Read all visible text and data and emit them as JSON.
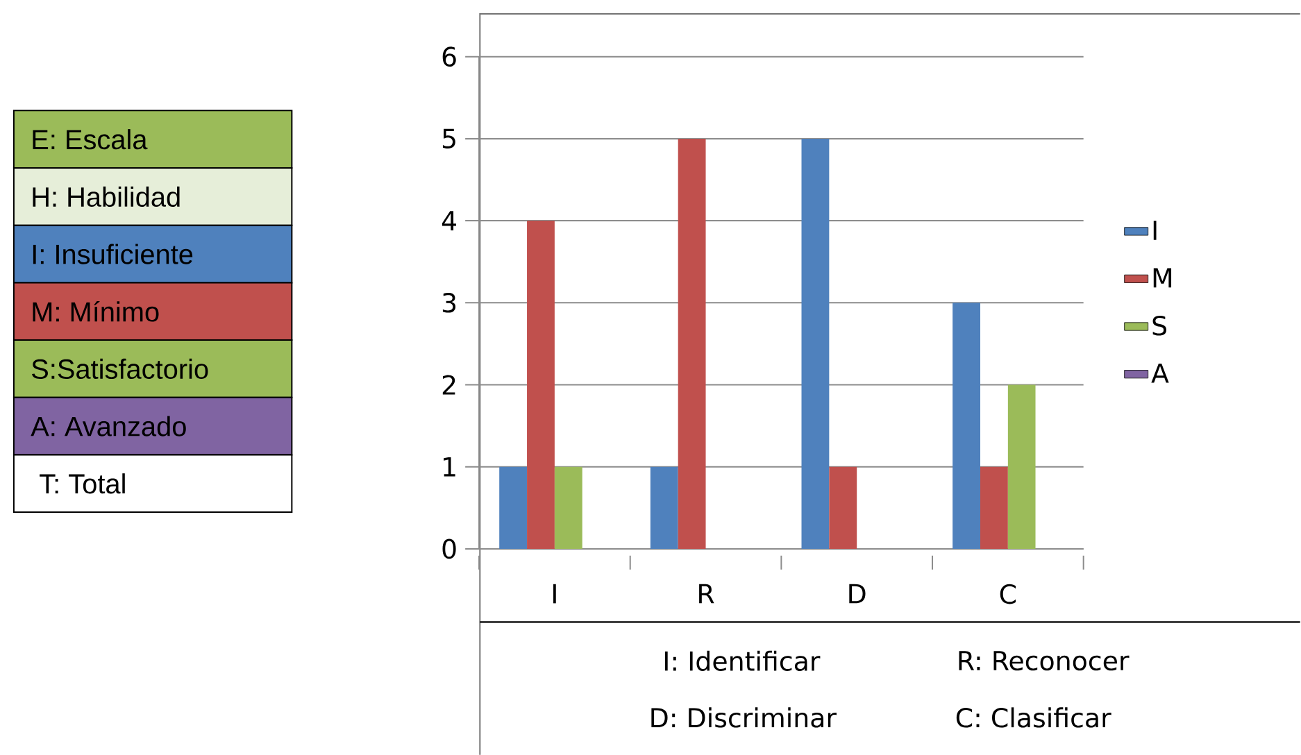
{
  "chart_data": {
    "type": "bar",
    "categories": [
      "I",
      "R",
      "D",
      "C"
    ],
    "series": [
      {
        "name": "I",
        "color": "#4f81bd",
        "values": [
          1,
          1,
          5,
          3
        ]
      },
      {
        "name": "M",
        "color": "#c0504d",
        "values": [
          4,
          5,
          1,
          1
        ]
      },
      {
        "name": "S",
        "color": "#9bbb59",
        "values": [
          1,
          0,
          0,
          2
        ]
      },
      {
        "name": "A",
        "color": "#8064a2",
        "values": [
          0,
          0,
          0,
          0
        ]
      }
    ],
    "ylim": [
      0,
      6
    ],
    "yticks": [
      0,
      1,
      2,
      3,
      4,
      5,
      6
    ],
    "grid": "y",
    "legend": "right",
    "annotations": [
      "E: Escala",
      "H: Habilidad",
      "I: Insuficiente",
      "M: Mínimo",
      "S:Satisfactorio",
      "A: Avanzado",
      "T: Total",
      "I: Identificar",
      "R: Reconocer",
      "D: Discriminar",
      "C: Clasificar"
    ]
  }
}
